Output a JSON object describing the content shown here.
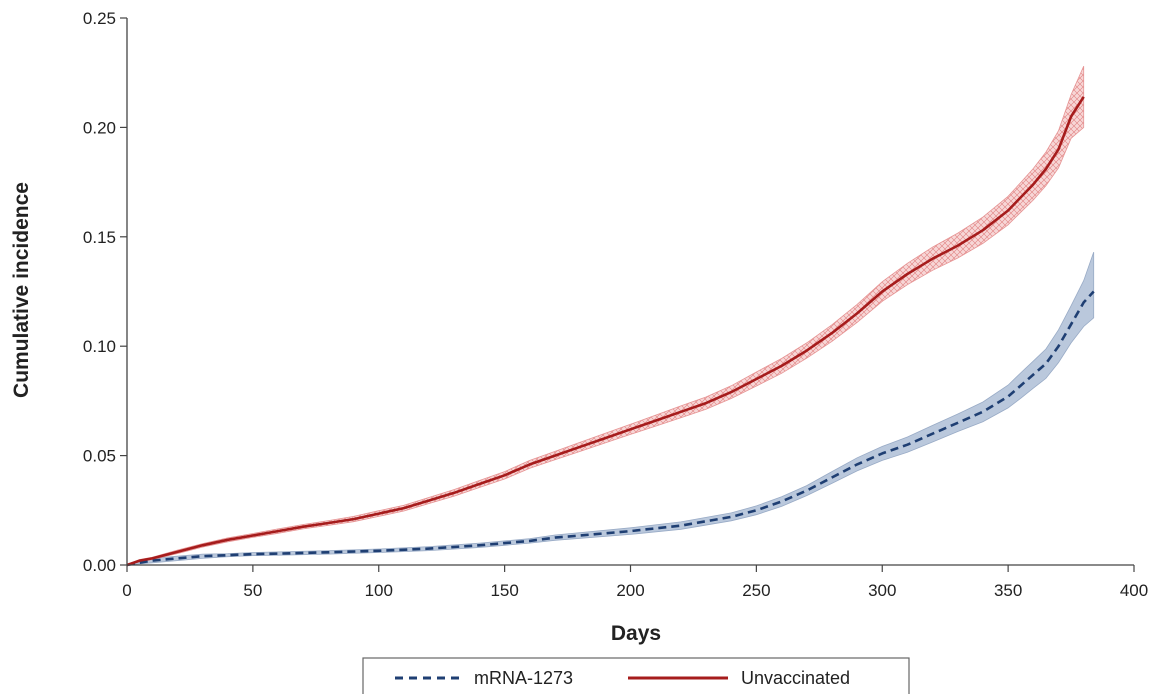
{
  "chart_data": {
    "type": "line",
    "title": "",
    "xlabel": "Days",
    "ylabel": "Cumulative incidence",
    "xlim": [
      0,
      400
    ],
    "ylim": [
      0,
      0.25
    ],
    "x_ticks": [
      "0",
      "50",
      "100",
      "150",
      "200",
      "250",
      "300",
      "350",
      "400"
    ],
    "y_ticks": [
      "0.00",
      "0.05",
      "0.10",
      "0.15",
      "0.20",
      "0.25"
    ],
    "grid": false,
    "legend_position": "bottom",
    "series": [
      {
        "name": "mRNA-1273",
        "style": "dashed",
        "color": "#1f3f73",
        "band_color": "#b3c3d9",
        "x": [
          0,
          5,
          10,
          20,
          30,
          40,
          50,
          60,
          80,
          100,
          120,
          140,
          150,
          160,
          170,
          180,
          200,
          220,
          240,
          250,
          260,
          270,
          280,
          290,
          300,
          310,
          320,
          330,
          340,
          350,
          355,
          360,
          365,
          370,
          375,
          380,
          384
        ],
        "y": [
          0,
          0.001,
          0.002,
          0.003,
          0.004,
          0.0045,
          0.005,
          0.0052,
          0.0058,
          0.0065,
          0.0075,
          0.009,
          0.01,
          0.011,
          0.0125,
          0.0135,
          0.0155,
          0.018,
          0.022,
          0.025,
          0.029,
          0.034,
          0.04,
          0.046,
          0.051,
          0.055,
          0.06,
          0.065,
          0.07,
          0.077,
          0.082,
          0.087,
          0.092,
          0.1,
          0.11,
          0.12,
          0.125
        ],
        "lower": [
          0,
          0.0005,
          0.001,
          0.002,
          0.003,
          0.0038,
          0.0043,
          0.0045,
          0.005,
          0.0057,
          0.0066,
          0.008,
          0.009,
          0.01,
          0.0113,
          0.0122,
          0.014,
          0.0163,
          0.0202,
          0.023,
          0.0268,
          0.0317,
          0.0373,
          0.043,
          0.0478,
          0.0515,
          0.0562,
          0.061,
          0.0655,
          0.0718,
          0.0762,
          0.0808,
          0.0853,
          0.0925,
          0.1015,
          0.109,
          0.113
        ],
        "upper": [
          0,
          0.0015,
          0.003,
          0.004,
          0.005,
          0.0052,
          0.0057,
          0.006,
          0.0066,
          0.0073,
          0.0084,
          0.01,
          0.011,
          0.012,
          0.0137,
          0.0148,
          0.017,
          0.0197,
          0.0238,
          0.027,
          0.0312,
          0.0363,
          0.0427,
          0.049,
          0.0542,
          0.0585,
          0.0638,
          0.069,
          0.0745,
          0.0822,
          0.0878,
          0.0932,
          0.0987,
          0.1075,
          0.1185,
          0.13,
          0.143
        ]
      },
      {
        "name": "Unvaccinated",
        "style": "solid",
        "color": "#a61c1c",
        "band_color": "#f2b8b8",
        "x": [
          0,
          5,
          10,
          20,
          30,
          40,
          50,
          60,
          70,
          80,
          90,
          100,
          110,
          120,
          130,
          140,
          150,
          160,
          170,
          180,
          190,
          200,
          210,
          220,
          230,
          240,
          250,
          260,
          270,
          280,
          290,
          300,
          310,
          320,
          330,
          340,
          350,
          355,
          360,
          365,
          370,
          375,
          380
        ],
        "y": [
          0,
          0.002,
          0.003,
          0.006,
          0.009,
          0.0115,
          0.0135,
          0.0155,
          0.0175,
          0.0192,
          0.021,
          0.0235,
          0.026,
          0.0295,
          0.033,
          0.037,
          0.041,
          0.046,
          0.05,
          0.054,
          0.058,
          0.062,
          0.066,
          0.07,
          0.074,
          0.079,
          0.085,
          0.091,
          0.098,
          0.106,
          0.115,
          0.125,
          0.133,
          0.14,
          0.146,
          0.153,
          0.162,
          0.168,
          0.174,
          0.181,
          0.19,
          0.205,
          0.214
        ],
        "lower": [
          0,
          0.0015,
          0.0025,
          0.0052,
          0.0082,
          0.0106,
          0.0126,
          0.0145,
          0.0165,
          0.0181,
          0.0198,
          0.0222,
          0.0247,
          0.0281,
          0.0315,
          0.0354,
          0.0393,
          0.0442,
          0.0481,
          0.0519,
          0.0558,
          0.0597,
          0.0635,
          0.0673,
          0.0712,
          0.0761,
          0.0818,
          0.0876,
          0.0945,
          0.1022,
          0.1109,
          0.1205,
          0.1281,
          0.1347,
          0.1403,
          0.147,
          0.1555,
          0.1612,
          0.1668,
          0.1733,
          0.1815,
          0.195,
          0.2
        ],
        "upper": [
          0,
          0.0025,
          0.0035,
          0.0068,
          0.0098,
          0.0124,
          0.0144,
          0.0165,
          0.0185,
          0.0203,
          0.0222,
          0.0248,
          0.0273,
          0.0309,
          0.0345,
          0.0386,
          0.0427,
          0.0478,
          0.0519,
          0.0561,
          0.0602,
          0.0643,
          0.0685,
          0.0727,
          0.0768,
          0.0819,
          0.0882,
          0.0944,
          0.1015,
          0.1098,
          0.1191,
          0.1295,
          0.1379,
          0.1453,
          0.1517,
          0.159,
          0.1685,
          0.1748,
          0.1812,
          0.1887,
          0.1985,
          0.215,
          0.228
        ]
      }
    ]
  }
}
